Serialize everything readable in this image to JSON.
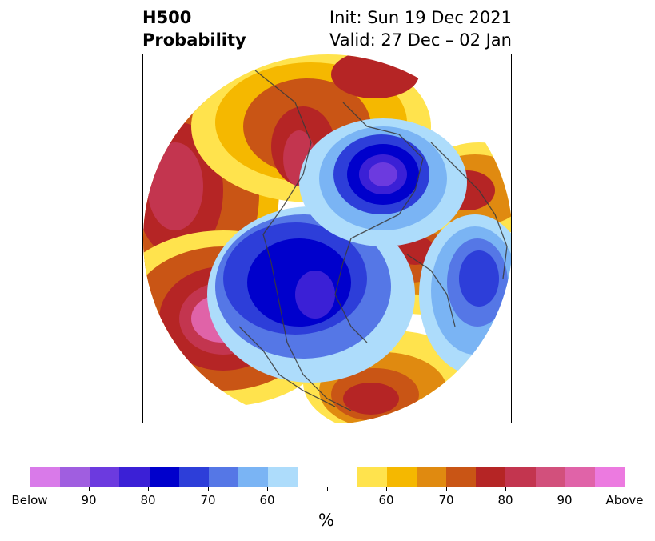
{
  "header": {
    "variable": "H500",
    "product": "Probability",
    "init": "Init: Sun 19 Dec 2021",
    "valid": "Valid: 27 Dec – 02 Jan"
  },
  "map": {
    "projection": "polar-stereographic-north-america",
    "below_colors": [
      "#d97ae9",
      "#a05ee0",
      "#6c3adf",
      "#3b20d6",
      "#0000cc",
      "#2d3ed9",
      "#5577e6",
      "#7ab4f4",
      "#addcfb"
    ],
    "neutral_color": "#ffffff",
    "above_colors": [
      "#ffe34d",
      "#f5b800",
      "#e08a10",
      "#c95515",
      "#b52525",
      "#c3354f",
      "#d2507c",
      "#e063a8",
      "#ec7ae0"
    ]
  },
  "colorbar": {
    "units": "%",
    "tick_labels": [
      "Below",
      "90",
      "80",
      "70",
      "60",
      "",
      "60",
      "70",
      "80",
      "90",
      "Above"
    ]
  }
}
